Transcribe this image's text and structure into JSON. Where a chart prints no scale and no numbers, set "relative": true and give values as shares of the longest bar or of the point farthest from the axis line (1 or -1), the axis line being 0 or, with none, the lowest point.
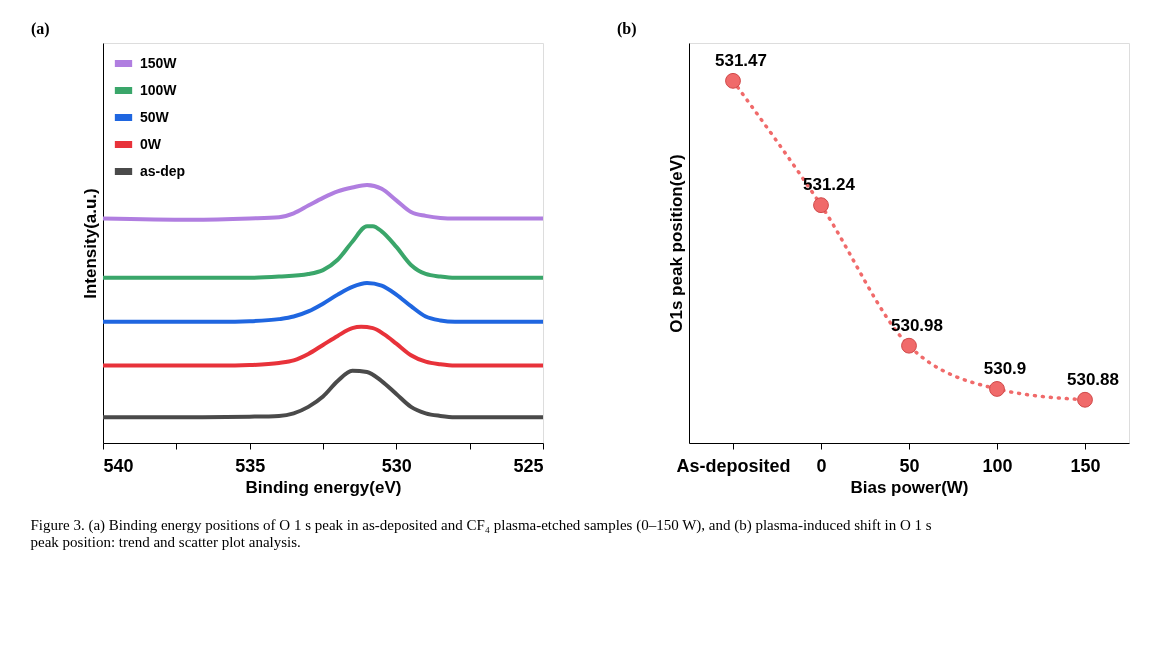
{
  "chart_data": [
    {
      "type": "line",
      "title": "(a)",
      "xlabel": "Binding energy(eV)",
      "ylabel": "Intensity(a.u.)",
      "relative": true,
      "legend": "top left",
      "tick_labels": "x",
      "xlim": [
        540,
        525
      ],
      "xticks": [
        540,
        {
          "value": 537.5,
          "label": null
        },
        535,
        {
          "value": 532.5,
          "label": null
        },
        530,
        {
          "value": 527.5,
          "label": null
        },
        525
      ],
      "series": [
        {
          "name": "150W",
          "color": "#b07ee0",
          "x": [
            540,
            537,
            535,
            534,
            533.5,
            533,
            532.5,
            532,
            531.5,
            531,
            530.5,
            530,
            529.5,
            529,
            528.5,
            528,
            525
          ],
          "values": [
            0.87,
            0.865,
            0.87,
            0.875,
            0.89,
            0.92,
            0.95,
            0.975,
            0.99,
            1.0,
            0.985,
            0.94,
            0.895,
            0.88,
            0.872,
            0.87,
            0.87
          ]
        },
        {
          "name": "100W",
          "color": "#3aa66a",
          "x": [
            540,
            535,
            534,
            533,
            532.5,
            532,
            531.5,
            531,
            530.8,
            530.5,
            530,
            529.5,
            529,
            528.5,
            528,
            525
          ],
          "values": [
            0.64,
            0.64,
            0.645,
            0.655,
            0.67,
            0.71,
            0.78,
            0.84,
            0.84,
            0.82,
            0.76,
            0.69,
            0.655,
            0.645,
            0.64,
            0.64
          ]
        },
        {
          "name": "50W",
          "color": "#1f66e0",
          "x": [
            540,
            536,
            535,
            534,
            533.5,
            533,
            532.5,
            532,
            531.5,
            531,
            530.5,
            530,
            529.5,
            529,
            528.5,
            528,
            525
          ],
          "values": [
            0.47,
            0.47,
            0.472,
            0.48,
            0.49,
            0.51,
            0.54,
            0.575,
            0.605,
            0.62,
            0.61,
            0.575,
            0.53,
            0.49,
            0.475,
            0.47,
            0.47
          ]
        },
        {
          "name": "0W",
          "color": "#e8323a",
          "x": [
            540,
            536,
            535,
            534,
            533.5,
            533,
            532.5,
            532,
            531.5,
            531.2,
            530.8,
            530.4,
            530,
            529.5,
            529,
            528.5,
            528,
            525
          ],
          "values": [
            0.3,
            0.3,
            0.302,
            0.31,
            0.32,
            0.345,
            0.38,
            0.415,
            0.445,
            0.45,
            0.445,
            0.42,
            0.385,
            0.34,
            0.315,
            0.305,
            0.3,
            0.3
          ]
        },
        {
          "name": "as-dep",
          "color": "#4a4a4a",
          "x": [
            540,
            537,
            535,
            534,
            533.5,
            533,
            532.5,
            532,
            531.5,
            531,
            530.5,
            530,
            529.5,
            529,
            528.5,
            528,
            525
          ],
          "values": [
            0.1,
            0.1,
            0.102,
            0.105,
            0.115,
            0.14,
            0.18,
            0.24,
            0.28,
            0.275,
            0.24,
            0.19,
            0.14,
            0.115,
            0.105,
            0.1,
            0.1
          ]
        }
      ],
      "annotations": [
        "Figure 3. (a) Binding energy positions of O 1 s peak in as-deposited and CF₄ plasma-etched samples (0–150 W), and (b) plasma-induced shift in O 1 s peak position: trend and scatter plot analysis."
      ]
    },
    {
      "type": "line",
      "title": "(b)",
      "xlabel": "Bias power(W)",
      "ylabel": "O1s peak position(eV)",
      "tick_labels": "x",
      "ylim": [
        530.8,
        531.54
      ],
      "categories": [
        "As-deposited",
        "0",
        "50",
        "100",
        "150"
      ],
      "series": [
        {
          "color": "#f06a6a",
          "values": [
            531.47,
            531.24,
            530.98,
            530.9,
            530.88
          ]
        }
      ],
      "marker": "circle",
      "line_style": "dotted",
      "data_labels": true
    }
  ]
}
